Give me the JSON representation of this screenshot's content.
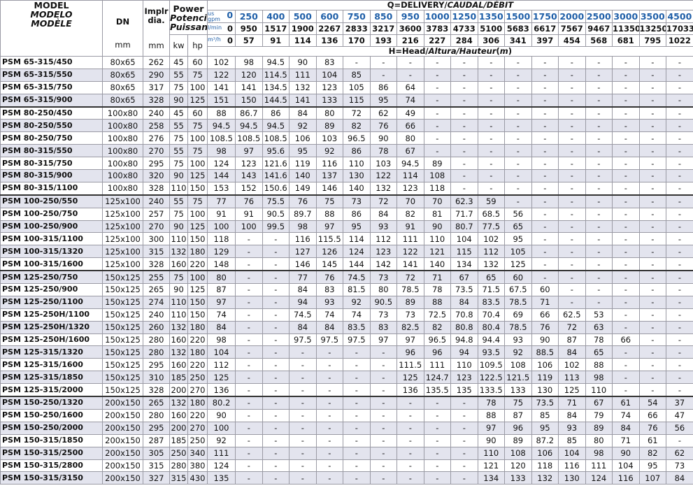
{
  "header": {
    "model": [
      "MODEL",
      "MODELO",
      "MODÈLE"
    ],
    "dn": "DN",
    "dn_unit": "mm",
    "impeller": [
      "Implr",
      "dia."
    ],
    "impeller_unit": "mm",
    "power": [
      "Power",
      "Potencia",
      "Puissance"
    ],
    "kw": "kw",
    "hp": "hp",
    "delivery": [
      "Q=DELIVERY/",
      "CAUDAL/DÉBIT"
    ],
    "units": [
      {
        "label": "us gpm",
        "values": [
          "0",
          "250",
          "400",
          "500",
          "600",
          "750",
          "850",
          "950",
          "1000",
          "1250",
          "1350",
          "1500",
          "1750",
          "2000",
          "2500",
          "3000",
          "3500",
          "4500"
        ]
      },
      {
        "label": "l/min",
        "values": [
          "0",
          "950",
          "1517",
          "1900",
          "2267",
          "2833",
          "3217",
          "3600",
          "3783",
          "4733",
          "5100",
          "5683",
          "6617",
          "7567",
          "9467",
          "11350",
          "13250",
          "17033"
        ]
      },
      {
        "label": "m³/h",
        "values": [
          "0",
          "57",
          "91",
          "114",
          "136",
          "170",
          "193",
          "216",
          "227",
          "284",
          "306",
          "341",
          "397",
          "454",
          "568",
          "681",
          "795",
          "1022"
        ]
      }
    ],
    "head": [
      "H=Head/",
      "Altura/Hauteur",
      "(",
      "m",
      ")"
    ]
  },
  "rows": [
    [
      "PSM 65-315/450",
      "80x65",
      "262",
      "45",
      "60",
      "102",
      "98",
      "94.5",
      "90",
      "83",
      "-",
      "-",
      "-",
      "-",
      "-",
      "-",
      "-",
      "-",
      "-",
      "-",
      "-",
      "-",
      "-"
    ],
    [
      "PSM 65-315/550",
      "80x65",
      "290",
      "55",
      "75",
      "122",
      "120",
      "114.5",
      "111",
      "104",
      "85",
      "-",
      "-",
      "-",
      "-",
      "-",
      "-",
      "-",
      "-",
      "-",
      "-",
      "-",
      "-"
    ],
    [
      "PSM 65-315/750",
      "80x65",
      "317",
      "75",
      "100",
      "141",
      "141",
      "134.5",
      "132",
      "123",
      "105",
      "86",
      "64",
      "-",
      "-",
      "-",
      "-",
      "-",
      "-",
      "-",
      "-",
      "-",
      "-"
    ],
    [
      "PSM 65-315/900",
      "80x65",
      "328",
      "90",
      "125",
      "151",
      "150",
      "144.5",
      "141",
      "133",
      "115",
      "95",
      "74",
      "-",
      "-",
      "-",
      "-",
      "-",
      "-",
      "-",
      "-",
      "-",
      "-"
    ],
    [
      "PSM 80-250/450",
      "100x80",
      "240",
      "45",
      "60",
      "88",
      "86.7",
      "86",
      "84",
      "80",
      "72",
      "62",
      "49",
      "-",
      "-",
      "-",
      "-",
      "-",
      "-",
      "-",
      "-",
      "-",
      "-"
    ],
    [
      "PSM 80-250/550",
      "100x80",
      "258",
      "55",
      "75",
      "94.5",
      "94.5",
      "94.5",
      "92",
      "89",
      "82",
      "76",
      "66",
      "-",
      "-",
      "-",
      "-",
      "-",
      "-",
      "-",
      "-",
      "-",
      "-"
    ],
    [
      "PSM 80-250/750",
      "100x80",
      "276",
      "75",
      "100",
      "108.5",
      "108.5",
      "108.5",
      "106",
      "103",
      "96.5",
      "90",
      "80",
      "-",
      "-",
      "-",
      "-",
      "-",
      "-",
      "-",
      "-",
      "-",
      "-"
    ],
    [
      "PSM 80-315/550",
      "100x80",
      "270",
      "55",
      "75",
      "98",
      "97",
      "95.6",
      "95",
      "92",
      "86",
      "78",
      "67",
      "-",
      "-",
      "-",
      "-",
      "-",
      "-",
      "-",
      "-",
      "-",
      "-"
    ],
    [
      "PSM 80-315/750",
      "100x80",
      "295",
      "75",
      "100",
      "124",
      "123",
      "121.6",
      "119",
      "116",
      "110",
      "103",
      "94.5",
      "89",
      "-",
      "-",
      "-",
      "-",
      "-",
      "-",
      "-",
      "-",
      "-"
    ],
    [
      "PSM 80-315/900",
      "100x80",
      "320",
      "90",
      "125",
      "144",
      "143",
      "141.6",
      "140",
      "137",
      "130",
      "122",
      "114",
      "108",
      "-",
      "-",
      "-",
      "-",
      "-",
      "-",
      "-",
      "-",
      "-"
    ],
    [
      "PSM 80-315/1100",
      "100x80",
      "328",
      "110",
      "150",
      "153",
      "152",
      "150.6",
      "149",
      "146",
      "140",
      "132",
      "123",
      "118",
      "-",
      "-",
      "-",
      "-",
      "-",
      "-",
      "-",
      "-",
      "-"
    ],
    [
      "PSM 100-250/550",
      "125x100",
      "240",
      "55",
      "75",
      "77",
      "76",
      "75.5",
      "76",
      "75",
      "73",
      "72",
      "70",
      "70",
      "62.3",
      "59",
      "-",
      "-",
      "-",
      "-",
      "-",
      "-",
      "-"
    ],
    [
      "PSM 100-250/750",
      "125x100",
      "257",
      "75",
      "100",
      "91",
      "91",
      "90.5",
      "89.7",
      "88",
      "86",
      "84",
      "82",
      "81",
      "71.7",
      "68.5",
      "56",
      "-",
      "-",
      "-",
      "-",
      "-",
      "-"
    ],
    [
      "PSM 100-250/900",
      "125x100",
      "270",
      "90",
      "125",
      "100",
      "100",
      "99.5",
      "98",
      "97",
      "95",
      "93",
      "91",
      "90",
      "80.7",
      "77.5",
      "65",
      "-",
      "-",
      "-",
      "-",
      "-",
      "-"
    ],
    [
      "PSM 100-315/1100",
      "125x100",
      "300",
      "110",
      "150",
      "118",
      "-",
      "-",
      "116",
      "115.5",
      "114",
      "112",
      "111",
      "110",
      "104",
      "102",
      "95",
      "-",
      "-",
      "-",
      "-",
      "-",
      "-"
    ],
    [
      "PSM 100-315/1320",
      "125x100",
      "315",
      "132",
      "180",
      "129",
      "-",
      "-",
      "127",
      "126",
      "124",
      "123",
      "122",
      "121",
      "115",
      "112",
      "105",
      "-",
      "-",
      "-",
      "-",
      "-",
      "-"
    ],
    [
      "PSM 100-315/1600",
      "125x100",
      "328",
      "160",
      "220",
      "148",
      "-",
      "-",
      "146",
      "145",
      "144",
      "142",
      "141",
      "140",
      "134",
      "132",
      "125",
      "-",
      "-",
      "-",
      "-",
      "-",
      "-"
    ],
    [
      "PSM 125-250/750",
      "150x125",
      "255",
      "75",
      "100",
      "80",
      "-",
      "-",
      "77",
      "76",
      "74.5",
      "73",
      "72",
      "71",
      "67",
      "65",
      "60",
      "-",
      "-",
      "-",
      "-",
      "-",
      "-"
    ],
    [
      "PSM 125-250/900",
      "150x125",
      "265",
      "90",
      "125",
      "87",
      "-",
      "-",
      "84",
      "83",
      "81.5",
      "80",
      "78.5",
      "78",
      "73.5",
      "71.5",
      "67.5",
      "60",
      "-",
      "-",
      "-",
      "-",
      "-"
    ],
    [
      "PSM 125-250/1100",
      "150x125",
      "274",
      "110",
      "150",
      "97",
      "-",
      "-",
      "94",
      "93",
      "92",
      "90.5",
      "89",
      "88",
      "84",
      "83.5",
      "78.5",
      "71",
      "-",
      "-",
      "-",
      "-",
      "-"
    ],
    [
      "PSM 125-250H/1100",
      "150x125",
      "240",
      "110",
      "150",
      "74",
      "-",
      "-",
      "74.5",
      "74",
      "74",
      "73",
      "73",
      "72.5",
      "70.8",
      "70.4",
      "69",
      "66",
      "62.5",
      "53",
      "-",
      "-",
      "-"
    ],
    [
      "PSM 125-250H/1320",
      "150x125",
      "260",
      "132",
      "180",
      "84",
      "-",
      "-",
      "84",
      "84",
      "83.5",
      "83",
      "82.5",
      "82",
      "80.8",
      "80.4",
      "78.5",
      "76",
      "72",
      "63",
      "-",
      "-",
      "-"
    ],
    [
      "PSM 125-250H/1600",
      "150x125",
      "280",
      "160",
      "220",
      "98",
      "-",
      "-",
      "97.5",
      "97.5",
      "97.5",
      "97",
      "97",
      "96.5",
      "94.8",
      "94.4",
      "93",
      "90",
      "87",
      "78",
      "66",
      "-",
      "-"
    ],
    [
      "PSM 125-315/1320",
      "150x125",
      "280",
      "132",
      "180",
      "104",
      "-",
      "-",
      "-",
      "-",
      "-",
      "-",
      "96",
      "96",
      "94",
      "93.5",
      "92",
      "88.5",
      "84",
      "65",
      "-",
      "-",
      "-"
    ],
    [
      "PSM 125-315/1600",
      "150x125",
      "295",
      "160",
      "220",
      "112",
      "-",
      "-",
      "-",
      "-",
      "-",
      "-",
      "111.5",
      "111",
      "110",
      "109.5",
      "108",
      "106",
      "102",
      "88",
      "-",
      "-",
      "-"
    ],
    [
      "PSM 125-315/1850",
      "150x125",
      "310",
      "185",
      "250",
      "125",
      "-",
      "-",
      "-",
      "-",
      "-",
      "-",
      "125",
      "124.7",
      "123",
      "122.5",
      "121.5",
      "119",
      "113",
      "98",
      "-",
      "-",
      "-"
    ],
    [
      "PSM 125-315/2000",
      "150x125",
      "328",
      "200",
      "270",
      "136",
      "-",
      "-",
      "-",
      "-",
      "-",
      "-",
      "136",
      "135.5",
      "135",
      "133.5",
      "133",
      "130",
      "125",
      "110",
      "-",
      "-",
      "-"
    ],
    [
      "PSM 150-250/1320",
      "200x150",
      "265",
      "132",
      "180",
      "80.2",
      "-",
      "-",
      "-",
      "-",
      "-",
      "-",
      "-",
      "-",
      "-",
      "78",
      "75",
      "73.5",
      "71",
      "67",
      "61",
      "54",
      "37"
    ],
    [
      "PSM 150-250/1600",
      "200x150",
      "280",
      "160",
      "220",
      "90",
      "-",
      "-",
      "-",
      "-",
      "-",
      "-",
      "-",
      "-",
      "-",
      "88",
      "87",
      "85",
      "84",
      "79",
      "74",
      "66",
      "47"
    ],
    [
      "PSM 150-250/2000",
      "200x150",
      "295",
      "200",
      "270",
      "100",
      "-",
      "-",
      "-",
      "-",
      "-",
      "-",
      "-",
      "-",
      "-",
      "97",
      "96",
      "95",
      "93",
      "89",
      "84",
      "76",
      "56"
    ],
    [
      "PSM 150-315/1850",
      "200x150",
      "287",
      "185",
      "250",
      "92",
      "-",
      "-",
      "-",
      "-",
      "-",
      "-",
      "-",
      "-",
      "-",
      "90",
      "89",
      "87.2",
      "85",
      "80",
      "71",
      "61",
      "-"
    ],
    [
      "PSM 150-315/2500",
      "200x150",
      "305",
      "250",
      "340",
      "111",
      "-",
      "-",
      "-",
      "-",
      "-",
      "-",
      "-",
      "-",
      "-",
      "110",
      "108",
      "106",
      "104",
      "98",
      "90",
      "82",
      "62"
    ],
    [
      "PSM 150-315/2800",
      "200x150",
      "315",
      "280",
      "380",
      "124",
      "-",
      "-",
      "-",
      "-",
      "-",
      "-",
      "-",
      "-",
      "-",
      "121",
      "120",
      "118",
      "116",
      "111",
      "104",
      "95",
      "73"
    ],
    [
      "PSM 150-315/3150",
      "200x150",
      "327",
      "315",
      "430",
      "135",
      "-",
      "-",
      "-",
      "-",
      "-",
      "-",
      "-",
      "-",
      "-",
      "134",
      "133",
      "132",
      "130",
      "124",
      "116",
      "107",
      "84"
    ]
  ]
}
